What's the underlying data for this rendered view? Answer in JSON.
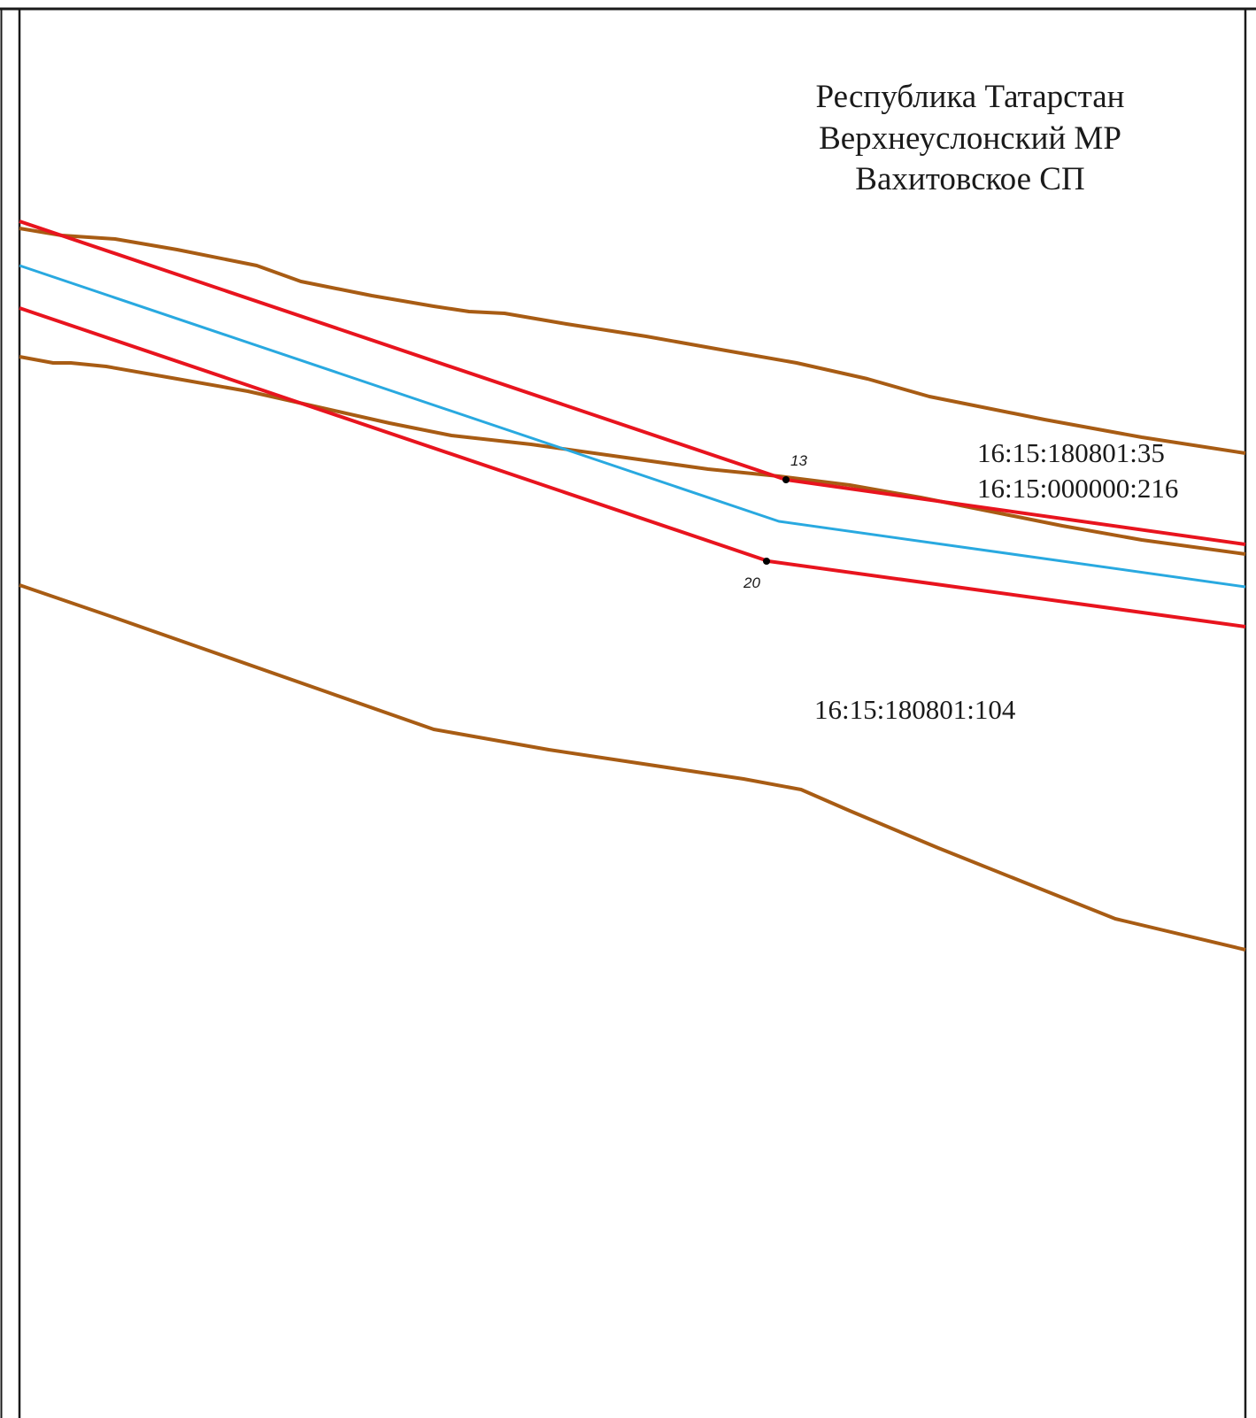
{
  "region": {
    "line1": "Республика Татарстан",
    "line2": "Верхнеуслонский МР",
    "line3": "Вахитовское СП"
  },
  "parcels": {
    "north_label": "16:15:180801:35",
    "road_label": "16:15:000000:216",
    "south_label": "16:15:180801:104"
  },
  "points": {
    "p13": "13",
    "p20": "20"
  },
  "colors": {
    "parcel_boundary": "#a85c14",
    "boundary_red": "#e8141e",
    "axis_blue": "#29a9e0",
    "frame": "#1a1a1a",
    "point": "#000000"
  }
}
